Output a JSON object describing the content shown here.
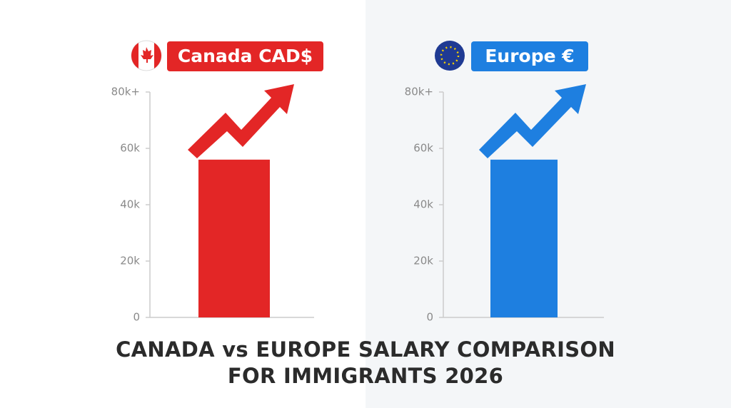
{
  "title": "CANADA vs EUROPE SALARY COMPARISON FOR IMMIGRANTS 2026",
  "chart_data": [
    {
      "type": "bar",
      "title": "Canada CAD$",
      "categories": [
        null
      ],
      "values": [
        56000
      ],
      "color": "#e32626",
      "ylim": [
        0,
        80000
      ],
      "yticks": [
        0,
        {
          "value": 20000,
          "label": "20k"
        },
        {
          "value": 40000,
          "label": "40k"
        },
        {
          "value": 60000,
          "label": "60k"
        },
        {
          "value": 80000,
          "label": "80k+"
        }
      ]
    },
    {
      "type": "bar",
      "title": "Europe €",
      "categories": [
        null
      ],
      "values": [
        56000
      ],
      "color": "#1e7fe0",
      "ylim": [
        0,
        80000
      ],
      "yticks": [
        0,
        {
          "value": 20000,
          "label": "20k"
        },
        {
          "value": 40000,
          "label": "40k"
        },
        {
          "value": 60000,
          "label": "60k"
        },
        {
          "value": 80000,
          "label": "80k+"
        }
      ]
    }
  ]
}
